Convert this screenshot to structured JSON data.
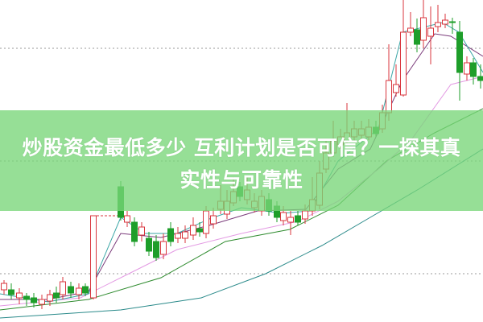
{
  "article": {
    "title_line1": "炒股资金最低多少 互利计划是否可信？一探其真",
    "title_line2": "实性与可靠性"
  },
  "colors": {
    "banner": "#78d678",
    "up_candle": "#d9363e",
    "down_candle": "#1e9e2a",
    "ma_short": "#3aa6a6",
    "ma_mid": "#7a3a7a",
    "ma_long": "#e39ae3",
    "ma_longer": "#2e8b2e",
    "ma_longest": "#2a8a8a"
  }
}
